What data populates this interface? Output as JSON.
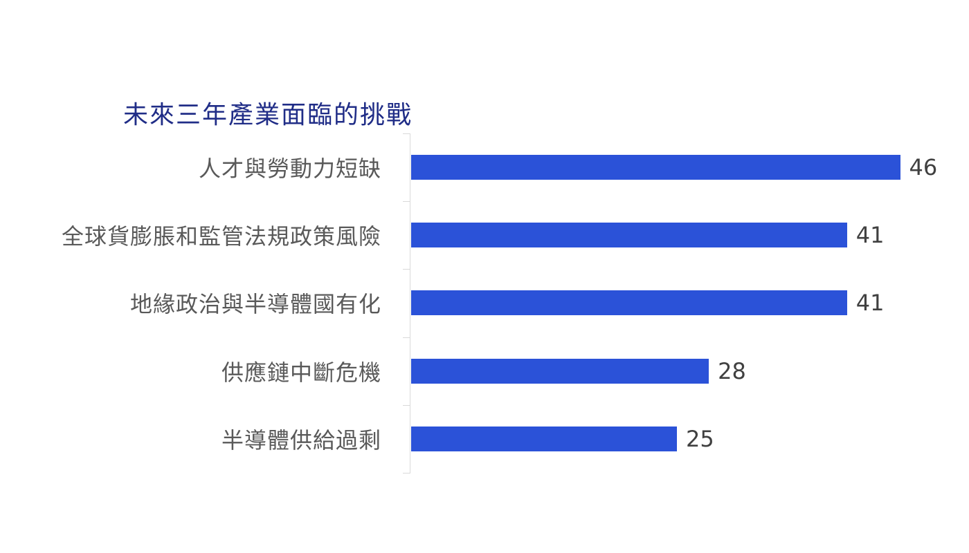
{
  "page": {
    "background_color": "#ffffff"
  },
  "chart_data": {
    "type": "bar",
    "orientation": "horizontal",
    "title": "未來三年產業面臨的挑戰",
    "categories": [
      "人才與勞動力短缺",
      "全球貨膨脹和監管法規政策風險",
      "地緣政治與半導體國有化",
      "供應鏈中斷危機",
      "半導體供給過剩"
    ],
    "values": [
      46,
      41,
      41,
      28,
      25
    ],
    "xlabel": "",
    "ylabel": "",
    "xlim": [
      0,
      50
    ],
    "grid": false,
    "legend": "none",
    "value_labels_shown": true,
    "colors": {
      "bar": "#2B52D8",
      "title": "#202D87",
      "category_label": "#595959",
      "value_label": "#404040",
      "axis_line": "#D9D9D9"
    }
  }
}
